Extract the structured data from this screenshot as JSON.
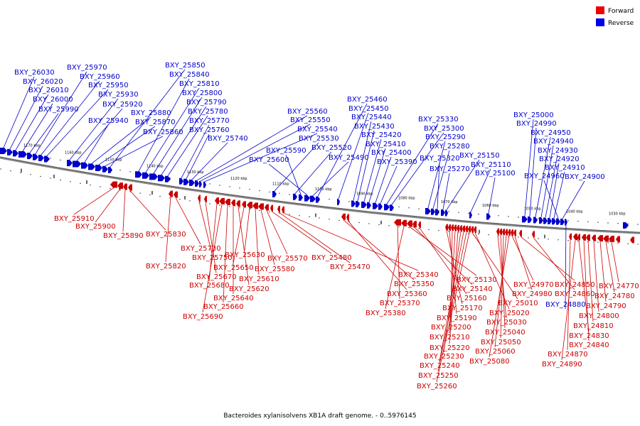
{
  "title": "Bacteroides xylanisolvens XB1A draft genome. - 0..5976145",
  "legend": [
    {
      "label": "Forward",
      "color": "#ee0000"
    },
    {
      "label": "Reverse",
      "color": "#0000ee"
    }
  ],
  "scale_ticks": [
    "1170 kbp",
    "1160 kbp",
    "1150 kbp",
    "1140 kbp",
    "1130 kbp",
    "1120 kbp",
    "1110 kbp",
    "1100 kbp",
    "1090 kbp",
    "1080 kbp",
    "1070 kbp",
    "1060 kbp",
    "1050 kbp",
    "1040 kbp",
    "1030 kbp"
  ],
  "reverse_genes": [
    "BXY_26030",
    "BXY_26020",
    "BXY_26010",
    "BXY_26000",
    "BXY_25990",
    "BXY_25970",
    "BXY_25960",
    "BXY_25950",
    "BXY_25930",
    "BXY_25920",
    "BXY_25940",
    "BXY_25880",
    "BXY_25870",
    "BXY_25860",
    "BXY_25850",
    "BXY_25840",
    "BXY_25810",
    "BXY_25800",
    "BXY_25790",
    "BXY_25780",
    "BXY_25770",
    "BXY_25760",
    "BXY_25740",
    "BXY_25560",
    "BXY_25550",
    "BXY_25540",
    "BXY_25530",
    "BXY_25520",
    "BXY_25590",
    "BXY_25600",
    "BXY_25490",
    "BXY_25460",
    "BXY_25450",
    "BXY_25440",
    "BXY_25430",
    "BXY_25420",
    "BXY_25410",
    "BXY_25400",
    "BXY_25390",
    "BXY_25330",
    "BXY_25300",
    "BXY_25290",
    "BXY_25280",
    "BXY_25320",
    "BXY_25270",
    "BXY_25150",
    "BXY_25110",
    "BXY_25100",
    "BXY_25000",
    "BXY_24990",
    "BXY_24950",
    "BXY_24940",
    "BXY_24930",
    "BXY_24920",
    "BXY_24910",
    "BXY_24960",
    "BXY_24900",
    "BXY_24880"
  ],
  "forward_genes": [
    "BXY_25910",
    "BXY_25900",
    "BXY_25890",
    "BXY_25830",
    "BXY_25820",
    "BXY_25730",
    "BXY_25750",
    "BXY_25670",
    "BXY_25680",
    "BXY_25690",
    "BXY_25660",
    "BXY_25640",
    "BXY_25620",
    "BXY_25650",
    "BXY_25630",
    "BXY_25610",
    "BXY_25580",
    "BXY_25570",
    "BXY_25480",
    "BXY_25470",
    "BXY_25340",
    "BXY_25350",
    "BXY_25360",
    "BXY_25370",
    "BXY_25380",
    "BXY_25130",
    "BXY_25140",
    "BXY_25160",
    "BXY_25170",
    "BXY_25190",
    "BXY_25200",
    "BXY_25210",
    "BXY_25220",
    "BXY_25230",
    "BXY_25240",
    "BXY_25250",
    "BXY_25260",
    "BXY_25010",
    "BXY_25020",
    "BXY_25030",
    "BXY_25040",
    "BXY_25050",
    "BXY_25060",
    "BXY_25080",
    "BXY_24970",
    "BXY_24980",
    "BXY_24850",
    "BXY_24860",
    "BXY_24870",
    "BXY_24890",
    "BXY_24830",
    "BXY_24840",
    "BXY_24810",
    "BXY_24800",
    "BXY_24790",
    "BXY_24780",
    "BXY_24770"
  ]
}
